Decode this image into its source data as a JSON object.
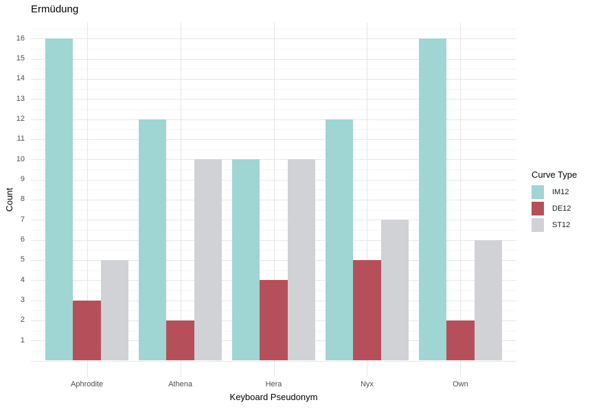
{
  "chart_data": {
    "type": "bar",
    "title": "Ermüdung",
    "xlabel": "Keyboard Pseudonym",
    "ylabel": "Count",
    "categories": [
      "Aphrodite",
      "Athena",
      "Hera",
      "Nyx",
      "Own"
    ],
    "series": [
      {
        "name": "IM12",
        "color": "#9FD5D2",
        "values": [
          16,
          12,
          10,
          12,
          16
        ]
      },
      {
        "name": "DE12",
        "color": "#B5505A",
        "values": [
          3,
          2,
          4,
          5,
          2
        ]
      },
      {
        "name": "ST12",
        "color": "#D0D2D5",
        "values": [
          5,
          10,
          10,
          7,
          6
        ]
      }
    ],
    "legend_title": "Curve Type",
    "legend_position": "right",
    "y_ticks": [
      1,
      2,
      3,
      4,
      5,
      6,
      7,
      8,
      9,
      10,
      11,
      12,
      13,
      14,
      15,
      16
    ],
    "ylim": [
      0,
      16.8
    ],
    "grid": true,
    "colors": {
      "grid_major": "#E6E6E6",
      "grid_minor": "#F5F5F5",
      "tick_label": "#4D4D4D",
      "text": "#000000",
      "background": "#FFFFFF"
    }
  }
}
